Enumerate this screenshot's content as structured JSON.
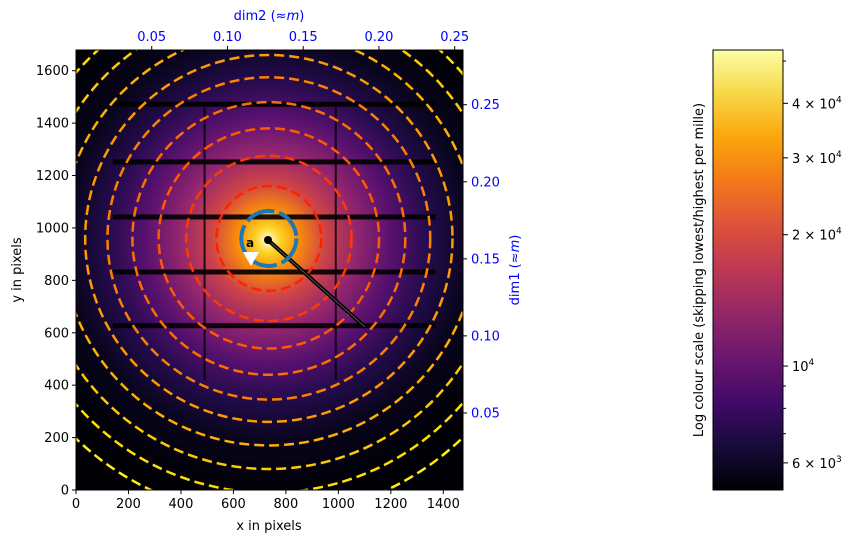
{
  "chart_data": {
    "type": "heatmap",
    "description_of_axes": "detector image with concentric calibration rings",
    "xlabel": "x in pixels",
    "ylabel": "y in pixels",
    "xlim": [
      0,
      1475
    ],
    "ylim": [
      0,
      1679
    ],
    "x_ticks": [
      0,
      200,
      400,
      600,
      800,
      1000,
      1200,
      1400
    ],
    "y_ticks": [
      0,
      200,
      400,
      600,
      800,
      1000,
      1200,
      1400,
      1600
    ],
    "secondary_x": {
      "label_prefix": "dim2 (",
      "label_symbol": "≈",
      "label_unit": "m",
      "label_suffix": ")",
      "ticks": [
        0.05,
        0.1,
        0.15,
        0.2,
        0.25
      ],
      "tick_labels": [
        "0.05",
        "0.10",
        "0.15",
        "0.20",
        "0.25"
      ],
      "lim": [
        -0.0,
        0.2555
      ]
    },
    "secondary_y": {
      "label_prefix": "dim1 (",
      "label_symbol": "≈",
      "label_unit": "m",
      "label_suffix": ")",
      "ticks": [
        0.05,
        0.1,
        0.15,
        0.2,
        0.25
      ],
      "tick_labels": [
        "0.05",
        "0.10",
        "0.15",
        "0.20",
        "0.25"
      ],
      "lim": [
        0.0,
        0.2855
      ]
    },
    "beam_center": {
      "x": 735,
      "y": 960
    },
    "rings": [
      {
        "radius": 200,
        "color": "#ff2200"
      },
      {
        "radius": 315,
        "color": "#ff3a00"
      },
      {
        "radius": 420,
        "color": "#ff5a00"
      },
      {
        "radius": 520,
        "color": "#ff6e00"
      },
      {
        "radius": 615,
        "color": "#ff8000"
      },
      {
        "radius": 700,
        "color": "#ff9a00"
      },
      {
        "radius": 790,
        "color": "#ffb000"
      },
      {
        "radius": 880,
        "color": "#ffca00"
      },
      {
        "radius": 970,
        "color": "#ffe000"
      },
      {
        "radius": 1060,
        "color": "#ffee10"
      }
    ],
    "inner_marker": {
      "radius": 105,
      "color": "#1f77b4",
      "label": "a"
    },
    "colorbar": {
      "label": "Log colour scale (skipping lowest/highest per mille)",
      "scale": "log",
      "vmin": 5200,
      "vmax": 53000,
      "major_ticks": [
        {
          "value": 10000,
          "base": "10",
          "exp": "4",
          "mantissa": ""
        },
        {
          "value": 20000,
          "base": "10",
          "exp": "4",
          "mantissa": "2 × "
        },
        {
          "value": 30000,
          "base": "10",
          "exp": "4",
          "mantissa": "3 × "
        },
        {
          "value": 40000,
          "base": "10",
          "exp": "4",
          "mantissa": "4 × "
        },
        {
          "value": 6000,
          "base": "10",
          "exp": "3",
          "mantissa": "6 × "
        }
      ],
      "minor_ticks": [
        7000,
        8000,
        9000,
        50000
      ],
      "colormap": "inferno"
    }
  }
}
